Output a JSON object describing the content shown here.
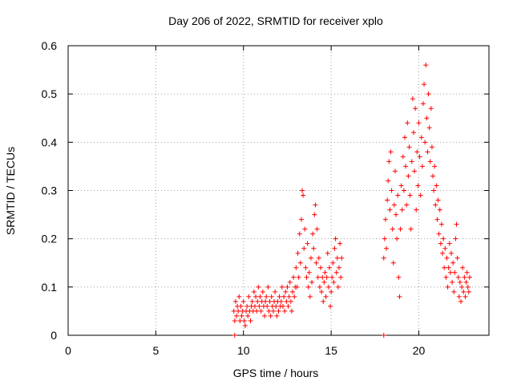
{
  "chart_data": {
    "type": "scatter",
    "title": "Day 206 of 2022, SRMTID for receiver xplo",
    "xlabel": "GPS time / hours",
    "ylabel": "SRMTID / TECUs",
    "xlim": [
      0,
      24
    ],
    "ylim": [
      0,
      0.6
    ],
    "x_ticks": [
      0,
      5,
      10,
      15,
      20
    ],
    "y_ticks": [
      0,
      0.1,
      0.2,
      0.3,
      0.4,
      0.5,
      0.6
    ],
    "x_tick_labels": [
      "0",
      "5",
      "10",
      "15",
      "20"
    ],
    "y_tick_labels": [
      "0",
      "0.1",
      "0.2",
      "0.3",
      "0.4",
      "0.5",
      "0.6"
    ],
    "grid": true,
    "marker": "plus",
    "series": [
      {
        "name": "SRMTID",
        "color": "#ff0000",
        "points": [
          [
            9.5,
            0.0
          ],
          [
            18.0,
            0.0
          ],
          [
            9.45,
            0.05
          ],
          [
            9.5,
            0.03
          ],
          [
            9.55,
            0.07
          ],
          [
            9.6,
            0.04
          ],
          [
            9.65,
            0.06
          ],
          [
            9.7,
            0.05
          ],
          [
            9.75,
            0.08
          ],
          [
            9.8,
            0.03
          ],
          [
            9.85,
            0.06
          ],
          [
            9.9,
            0.04
          ],
          [
            9.95,
            0.05
          ],
          [
            10.0,
            0.07
          ],
          [
            10.05,
            0.03
          ],
          [
            10.1,
            0.02
          ],
          [
            10.15,
            0.05
          ],
          [
            10.2,
            0.06
          ],
          [
            10.25,
            0.04
          ],
          [
            10.3,
            0.08
          ],
          [
            10.35,
            0.05
          ],
          [
            10.4,
            0.03
          ],
          [
            10.45,
            0.06
          ],
          [
            10.5,
            0.07
          ],
          [
            10.55,
            0.05
          ],
          [
            10.6,
            0.09
          ],
          [
            10.65,
            0.06
          ],
          [
            10.7,
            0.08
          ],
          [
            10.75,
            0.05
          ],
          [
            10.8,
            0.07
          ],
          [
            10.85,
            0.1
          ],
          [
            10.9,
            0.06
          ],
          [
            10.95,
            0.08
          ],
          [
            11.0,
            0.05
          ],
          [
            11.05,
            0.07
          ],
          [
            11.1,
            0.09
          ],
          [
            11.15,
            0.06
          ],
          [
            11.2,
            0.04
          ],
          [
            11.25,
            0.07
          ],
          [
            11.3,
            0.08
          ],
          [
            11.35,
            0.06
          ],
          [
            11.4,
            0.1
          ],
          [
            11.45,
            0.05
          ],
          [
            11.5,
            0.07
          ],
          [
            11.55,
            0.04
          ],
          [
            11.6,
            0.08
          ],
          [
            11.65,
            0.06
          ],
          [
            11.7,
            0.05
          ],
          [
            11.75,
            0.07
          ],
          [
            11.8,
            0.09
          ],
          [
            11.85,
            0.06
          ],
          [
            11.9,
            0.04
          ],
          [
            11.95,
            0.07
          ],
          [
            12.0,
            0.05
          ],
          [
            12.05,
            0.08
          ],
          [
            12.1,
            0.06
          ],
          [
            12.15,
            0.07
          ],
          [
            12.2,
            0.1
          ],
          [
            12.25,
            0.06
          ],
          [
            12.3,
            0.08
          ],
          [
            12.35,
            0.05
          ],
          [
            12.4,
            0.09
          ],
          [
            12.45,
            0.07
          ],
          [
            12.5,
            0.1
          ],
          [
            12.55,
            0.06
          ],
          [
            12.6,
            0.08
          ],
          [
            12.65,
            0.11
          ],
          [
            12.7,
            0.07
          ],
          [
            12.75,
            0.05
          ],
          [
            12.8,
            0.09
          ],
          [
            12.85,
            0.12
          ],
          [
            12.9,
            0.08
          ],
          [
            12.95,
            0.1
          ],
          [
            13.0,
            0.14
          ],
          [
            13.05,
            0.1
          ],
          [
            13.1,
            0.17
          ],
          [
            13.15,
            0.12
          ],
          [
            13.2,
            0.21
          ],
          [
            13.25,
            0.15
          ],
          [
            13.3,
            0.24
          ],
          [
            13.35,
            0.3
          ],
          [
            13.4,
            0.29
          ],
          [
            13.45,
            0.18
          ],
          [
            13.5,
            0.22
          ],
          [
            13.55,
            0.14
          ],
          [
            13.6,
            0.12
          ],
          [
            13.65,
            0.19
          ],
          [
            13.7,
            0.1
          ],
          [
            13.75,
            0.13
          ],
          [
            13.8,
            0.08
          ],
          [
            13.85,
            0.16
          ],
          [
            13.9,
            0.11
          ],
          [
            13.95,
            0.21
          ],
          [
            14.0,
            0.18
          ],
          [
            14.05,
            0.25
          ],
          [
            14.1,
            0.27
          ],
          [
            14.15,
            0.15
          ],
          [
            14.2,
            0.22
          ],
          [
            14.25,
            0.12
          ],
          [
            14.3,
            0.16
          ],
          [
            14.35,
            0.1
          ],
          [
            14.4,
            0.14
          ],
          [
            14.45,
            0.09
          ],
          [
            14.5,
            0.12
          ],
          [
            14.55,
            0.07
          ],
          [
            14.6,
            0.11
          ],
          [
            14.65,
            0.13
          ],
          [
            14.7,
            0.08
          ],
          [
            14.75,
            0.12
          ],
          [
            14.8,
            0.17
          ],
          [
            14.85,
            0.1
          ],
          [
            14.9,
            0.14
          ],
          [
            14.95,
            0.06
          ],
          [
            15.0,
            0.09
          ],
          [
            15.05,
            0.12
          ],
          [
            15.1,
            0.15
          ],
          [
            15.15,
            0.11
          ],
          [
            15.2,
            0.18
          ],
          [
            15.25,
            0.2
          ],
          [
            15.3,
            0.13
          ],
          [
            15.35,
            0.16
          ],
          [
            15.4,
            0.1
          ],
          [
            15.45,
            0.14
          ],
          [
            15.5,
            0.19
          ],
          [
            15.55,
            0.12
          ],
          [
            15.6,
            0.16
          ],
          [
            18.0,
            0.16
          ],
          [
            18.05,
            0.2
          ],
          [
            18.1,
            0.24
          ],
          [
            18.15,
            0.18
          ],
          [
            18.2,
            0.28
          ],
          [
            18.25,
            0.32
          ],
          [
            18.3,
            0.36
          ],
          [
            18.35,
            0.26
          ],
          [
            18.4,
            0.38
          ],
          [
            18.45,
            0.3
          ],
          [
            18.5,
            0.22
          ],
          [
            18.55,
            0.15
          ],
          [
            18.6,
            0.27
          ],
          [
            18.65,
            0.34
          ],
          [
            18.7,
            0.25
          ],
          [
            18.75,
            0.2
          ],
          [
            18.8,
            0.29
          ],
          [
            18.85,
            0.12
          ],
          [
            18.9,
            0.08
          ],
          [
            18.95,
            0.22
          ],
          [
            19.0,
            0.31
          ],
          [
            19.05,
            0.26
          ],
          [
            19.1,
            0.37
          ],
          [
            19.15,
            0.3
          ],
          [
            19.2,
            0.41
          ],
          [
            19.25,
            0.35
          ],
          [
            19.3,
            0.27
          ],
          [
            19.35,
            0.44
          ],
          [
            19.4,
            0.33
          ],
          [
            19.45,
            0.39
          ],
          [
            19.5,
            0.29
          ],
          [
            19.55,
            0.22
          ],
          [
            19.6,
            0.36
          ],
          [
            19.65,
            0.49
          ],
          [
            19.7,
            0.42
          ],
          [
            19.75,
            0.34
          ],
          [
            19.8,
            0.47
          ],
          [
            19.85,
            0.26
          ],
          [
            19.9,
            0.38
          ],
          [
            19.95,
            0.31
          ],
          [
            20.0,
            0.44
          ],
          [
            20.05,
            0.37
          ],
          [
            20.1,
            0.29
          ],
          [
            20.15,
            0.41
          ],
          [
            20.2,
            0.35
          ],
          [
            20.25,
            0.48
          ],
          [
            20.3,
            0.52
          ],
          [
            20.35,
            0.4
          ],
          [
            20.4,
            0.56
          ],
          [
            20.45,
            0.45
          ],
          [
            20.5,
            0.38
          ],
          [
            20.55,
            0.5
          ],
          [
            20.6,
            0.43
          ],
          [
            20.65,
            0.36
          ],
          [
            20.7,
            0.47
          ],
          [
            20.75,
            0.39
          ],
          [
            20.8,
            0.33
          ],
          [
            20.85,
            0.3
          ],
          [
            20.9,
            0.35
          ],
          [
            20.95,
            0.27
          ],
          [
            21.0,
            0.31
          ],
          [
            21.05,
            0.24
          ],
          [
            21.1,
            0.28
          ],
          [
            21.15,
            0.21
          ],
          [
            21.2,
            0.26
          ],
          [
            21.25,
            0.19
          ],
          [
            21.3,
            0.23
          ],
          [
            21.35,
            0.17
          ],
          [
            21.4,
            0.2
          ],
          [
            21.45,
            0.14
          ],
          [
            21.5,
            0.18
          ],
          [
            21.55,
            0.12
          ],
          [
            21.6,
            0.16
          ],
          [
            21.65,
            0.1
          ],
          [
            21.7,
            0.14
          ],
          [
            21.75,
            0.19
          ],
          [
            21.8,
            0.13
          ],
          [
            21.85,
            0.17
          ],
          [
            21.9,
            0.11
          ],
          [
            21.95,
            0.15
          ],
          [
            22.0,
            0.09
          ],
          [
            22.05,
            0.13
          ],
          [
            22.1,
            0.2
          ],
          [
            22.15,
            0.23
          ],
          [
            22.2,
            0.16
          ],
          [
            22.25,
            0.12
          ],
          [
            22.3,
            0.08
          ],
          [
            22.35,
            0.11
          ],
          [
            22.4,
            0.07
          ],
          [
            22.45,
            0.1
          ],
          [
            22.5,
            0.14
          ],
          [
            22.55,
            0.09
          ],
          [
            22.6,
            0.12
          ],
          [
            22.65,
            0.08
          ],
          [
            22.7,
            0.11
          ],
          [
            22.75,
            0.13
          ],
          [
            22.8,
            0.1
          ],
          [
            22.85,
            0.09
          ],
          [
            22.9,
            0.12
          ]
        ]
      }
    ]
  }
}
